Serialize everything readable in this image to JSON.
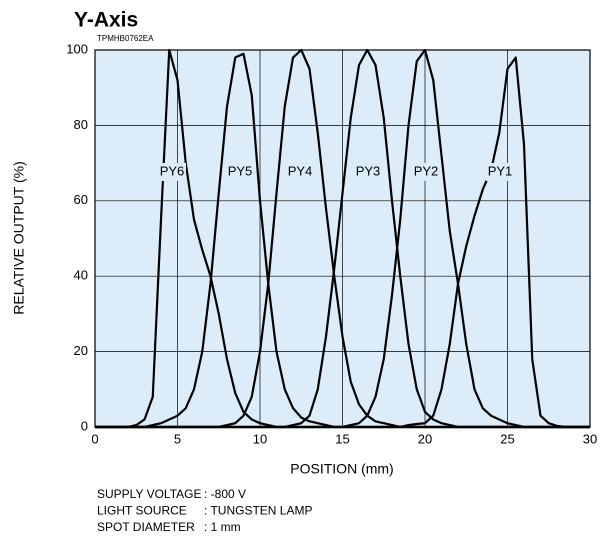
{
  "chart_data": {
    "type": "line",
    "title": "Y-Axis",
    "subtitle": "TPMHB0762EA",
    "xlabel": "POSITION (mm)",
    "ylabel": "RELATIVE OUTPUT (%)",
    "xlim": [
      0,
      30
    ],
    "ylim": [
      0,
      100
    ],
    "xticks": [
      0,
      5,
      10,
      15,
      20,
      25,
      30
    ],
    "yticks": [
      0,
      20,
      40,
      60,
      80,
      100
    ],
    "grid": true,
    "background": "#dcedf9",
    "x": [
      0,
      0.5,
      1,
      1.5,
      2,
      2.5,
      3,
      3.5,
      4,
      4.5,
      5,
      5.5,
      6,
      6.5,
      7,
      7.5,
      8,
      8.5,
      9,
      9.5,
      10,
      10.5,
      11,
      11.5,
      12,
      12.5,
      13,
      13.5,
      14,
      14.5,
      15,
      15.5,
      16,
      16.5,
      17,
      17.5,
      18,
      18.5,
      19,
      19.5,
      20,
      20.5,
      21,
      21.5,
      22,
      22.5,
      23,
      23.5,
      24,
      24.5,
      25,
      25.5,
      26,
      26.5,
      27,
      27.5,
      28,
      28.5,
      29,
      29.5,
      30
    ],
    "series": [
      {
        "name": "PY6",
        "color": "#000000",
        "values": [
          0,
          0,
          0,
          0,
          0,
          0.5,
          2,
          8,
          55,
          100,
          92,
          70,
          55,
          47,
          40,
          30,
          18,
          9,
          4,
          2,
          1,
          0.5,
          0,
          0,
          0,
          0,
          0,
          0,
          0,
          0,
          0,
          0,
          0,
          0,
          0,
          0,
          0,
          0,
          0,
          0,
          0,
          0,
          0,
          0,
          0,
          0,
          0,
          0,
          0,
          0,
          0,
          0,
          0,
          0,
          0,
          0,
          0,
          0,
          0,
          0,
          0
        ]
      },
      {
        "name": "PY5",
        "color": "#000000",
        "values": [
          0,
          0,
          0,
          0,
          0,
          0,
          0,
          0.5,
          1,
          2,
          3,
          5,
          10,
          20,
          38,
          62,
          85,
          98,
          99,
          88,
          60,
          38,
          20,
          10,
          5,
          2.5,
          1.5,
          1,
          0.5,
          0,
          0,
          0,
          0,
          0,
          0,
          0,
          0,
          0,
          0,
          0,
          0,
          0,
          0,
          0,
          0,
          0,
          0,
          0,
          0,
          0,
          0,
          0,
          0,
          0,
          0,
          0,
          0,
          0,
          0,
          0,
          0
        ]
      },
      {
        "name": "PY4",
        "color": "#000000",
        "values": [
          0,
          0,
          0,
          0,
          0,
          0,
          0,
          0,
          0,
          0,
          0,
          0,
          0,
          0,
          0,
          0,
          0.5,
          1,
          3,
          8,
          20,
          38,
          62,
          85,
          98,
          100,
          95,
          78,
          58,
          40,
          24,
          12,
          6,
          3,
          1.5,
          1,
          0.5,
          0,
          0,
          0,
          0,
          0,
          0,
          0,
          0,
          0,
          0,
          0,
          0,
          0,
          0,
          0,
          0,
          0,
          0,
          0,
          0,
          0,
          0,
          0,
          0
        ]
      },
      {
        "name": "PY3",
        "color": "#000000",
        "values": [
          0,
          0,
          0,
          0,
          0,
          0,
          0,
          0,
          0,
          0,
          0,
          0,
          0,
          0,
          0,
          0,
          0,
          0,
          0,
          0,
          0,
          0,
          0,
          0,
          0.5,
          1,
          3,
          10,
          24,
          42,
          62,
          82,
          96,
          100,
          96,
          82,
          60,
          40,
          22,
          10,
          4,
          2,
          1,
          0.5,
          0,
          0,
          0,
          0,
          0,
          0,
          0,
          0,
          0,
          0,
          0,
          0,
          0,
          0,
          0,
          0,
          0
        ]
      },
      {
        "name": "PY2",
        "color": "#000000",
        "values": [
          0,
          0,
          0,
          0,
          0,
          0,
          0,
          0,
          0,
          0,
          0,
          0,
          0,
          0,
          0,
          0,
          0,
          0,
          0,
          0,
          0,
          0,
          0,
          0,
          0,
          0,
          0,
          0,
          0,
          0,
          0,
          0.5,
          1,
          3,
          8,
          18,
          35,
          55,
          80,
          97,
          100,
          92,
          72,
          52,
          38,
          22,
          10,
          5,
          3,
          2,
          1,
          0.5,
          0,
          0,
          0,
          0,
          0,
          0,
          0,
          0,
          0
        ]
      },
      {
        "name": "PY1",
        "color": "#000000",
        "values": [
          0,
          0,
          0,
          0,
          0,
          0,
          0,
          0,
          0,
          0,
          0,
          0,
          0,
          0,
          0,
          0,
          0,
          0,
          0,
          0,
          0,
          0,
          0,
          0,
          0,
          0,
          0,
          0,
          0,
          0,
          0,
          0,
          0,
          0,
          0,
          0,
          0,
          0,
          0.5,
          0.8,
          1,
          3,
          10,
          22,
          38,
          48,
          56,
          63,
          68,
          78,
          95,
          98,
          75,
          18,
          3,
          1,
          0.3,
          0,
          0,
          0,
          0
        ]
      }
    ],
    "notes": [
      {
        "label": "SUPPLY VOLTAGE",
        "value": ": -800 V"
      },
      {
        "label": "LIGHT SOURCE",
        "value": ": TUNGSTEN LAMP"
      },
      {
        "label": "SPOT DIAMETER",
        "value": ": 1 mm"
      }
    ]
  }
}
